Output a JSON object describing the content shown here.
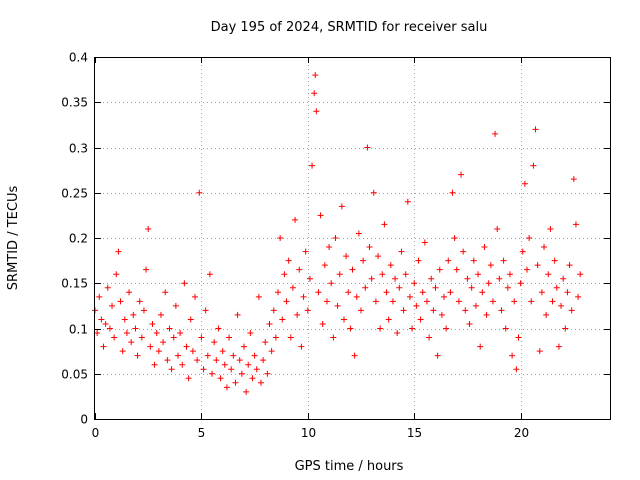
{
  "chart_data": {
    "type": "scatter",
    "title": "Day 195 of 2024, SRMTID for receiver salu",
    "xlabel": "GPS time / hours",
    "ylabel": "SRMTID / TECUs",
    "xlim": [
      0,
      24.2
    ],
    "ylim": [
      0,
      0.4
    ],
    "xticks": [
      0,
      5,
      10,
      15,
      20
    ],
    "xtick_labels": [
      "0",
      "5",
      "10",
      "15",
      "20"
    ],
    "yticks": [
      0,
      0.05,
      0.1,
      0.15,
      0.2,
      0.25,
      0.3,
      0.35,
      0.4
    ],
    "ytick_labels": [
      "0",
      "0.05",
      "0.1",
      "0.15",
      "0.2",
      "0.25",
      "0.3",
      "0.35",
      "0.4"
    ],
    "grid": true,
    "marker": "+",
    "color": "#ff0000",
    "series": [
      {
        "name": "SRMTID",
        "points": [
          [
            0.0,
            0.12
          ],
          [
            0.1,
            0.095
          ],
          [
            0.2,
            0.135
          ],
          [
            0.3,
            0.11
          ],
          [
            0.4,
            0.08
          ],
          [
            0.5,
            0.105
          ],
          [
            0.6,
            0.145
          ],
          [
            0.7,
            0.1
          ],
          [
            0.8,
            0.125
          ],
          [
            0.9,
            0.09
          ],
          [
            1.0,
            0.16
          ],
          [
            1.1,
            0.185
          ],
          [
            1.2,
            0.13
          ],
          [
            1.3,
            0.075
          ],
          [
            1.4,
            0.11
          ],
          [
            1.5,
            0.095
          ],
          [
            1.6,
            0.14
          ],
          [
            1.7,
            0.085
          ],
          [
            1.8,
            0.115
          ],
          [
            1.9,
            0.1
          ],
          [
            2.0,
            0.07
          ],
          [
            2.1,
            0.13
          ],
          [
            2.2,
            0.09
          ],
          [
            2.3,
            0.12
          ],
          [
            2.4,
            0.165
          ],
          [
            2.5,
            0.21
          ],
          [
            2.6,
            0.08
          ],
          [
            2.7,
            0.105
          ],
          [
            2.8,
            0.06
          ],
          [
            2.9,
            0.095
          ],
          [
            3.0,
            0.075
          ],
          [
            3.1,
            0.115
          ],
          [
            3.2,
            0.085
          ],
          [
            3.3,
            0.14
          ],
          [
            3.4,
            0.065
          ],
          [
            3.5,
            0.1
          ],
          [
            3.6,
            0.055
          ],
          [
            3.7,
            0.09
          ],
          [
            3.8,
            0.125
          ],
          [
            3.9,
            0.07
          ],
          [
            4.0,
            0.095
          ],
          [
            4.1,
            0.06
          ],
          [
            4.2,
            0.15
          ],
          [
            4.3,
            0.08
          ],
          [
            4.4,
            0.045
          ],
          [
            4.5,
            0.11
          ],
          [
            4.6,
            0.075
          ],
          [
            4.7,
            0.135
          ],
          [
            4.8,
            0.065
          ],
          [
            4.9,
            0.25
          ],
          [
            5.0,
            0.09
          ],
          [
            5.1,
            0.055
          ],
          [
            5.2,
            0.12
          ],
          [
            5.3,
            0.07
          ],
          [
            5.4,
            0.16
          ],
          [
            5.5,
            0.05
          ],
          [
            5.6,
            0.085
          ],
          [
            5.7,
            0.065
          ],
          [
            5.8,
            0.1
          ],
          [
            5.9,
            0.045
          ],
          [
            6.0,
            0.075
          ],
          [
            6.1,
            0.06
          ],
          [
            6.2,
            0.035
          ],
          [
            6.3,
            0.09
          ],
          [
            6.4,
            0.055
          ],
          [
            6.5,
            0.07
          ],
          [
            6.6,
            0.04
          ],
          [
            6.7,
            0.115
          ],
          [
            6.8,
            0.065
          ],
          [
            6.9,
            0.05
          ],
          [
            7.0,
            0.08
          ],
          [
            7.1,
            0.03
          ],
          [
            7.2,
            0.06
          ],
          [
            7.3,
            0.095
          ],
          [
            7.4,
            0.045
          ],
          [
            7.5,
            0.07
          ],
          [
            7.6,
            0.055
          ],
          [
            7.7,
            0.135
          ],
          [
            7.8,
            0.04
          ],
          [
            7.9,
            0.065
          ],
          [
            8.0,
            0.085
          ],
          [
            8.1,
            0.05
          ],
          [
            8.2,
            0.105
          ],
          [
            8.3,
            0.075
          ],
          [
            8.4,
            0.12
          ],
          [
            8.5,
            0.09
          ],
          [
            8.6,
            0.14
          ],
          [
            8.7,
            0.2
          ],
          [
            8.8,
            0.11
          ],
          [
            8.9,
            0.16
          ],
          [
            9.0,
            0.13
          ],
          [
            9.1,
            0.175
          ],
          [
            9.2,
            0.09
          ],
          [
            9.3,
            0.145
          ],
          [
            9.4,
            0.22
          ],
          [
            9.5,
            0.115
          ],
          [
            9.6,
            0.165
          ],
          [
            9.7,
            0.08
          ],
          [
            9.8,
            0.135
          ],
          [
            9.9,
            0.185
          ],
          [
            10.0,
            0.12
          ],
          [
            10.1,
            0.155
          ],
          [
            10.2,
            0.28
          ],
          [
            10.3,
            0.36
          ],
          [
            10.35,
            0.38
          ],
          [
            10.4,
            0.34
          ],
          [
            10.5,
            0.14
          ],
          [
            10.6,
            0.225
          ],
          [
            10.7,
            0.105
          ],
          [
            10.8,
            0.17
          ],
          [
            10.9,
            0.13
          ],
          [
            11.0,
            0.19
          ],
          [
            11.1,
            0.15
          ],
          [
            11.2,
            0.09
          ],
          [
            11.3,
            0.2
          ],
          [
            11.4,
            0.125
          ],
          [
            11.5,
            0.16
          ],
          [
            11.6,
            0.235
          ],
          [
            11.7,
            0.11
          ],
          [
            11.8,
            0.18
          ],
          [
            11.9,
            0.14
          ],
          [
            12.0,
            0.1
          ],
          [
            12.1,
            0.165
          ],
          [
            12.2,
            0.07
          ],
          [
            12.3,
            0.135
          ],
          [
            12.4,
            0.205
          ],
          [
            12.5,
            0.12
          ],
          [
            12.6,
            0.175
          ],
          [
            12.7,
            0.145
          ],
          [
            12.8,
            0.3
          ],
          [
            12.9,
            0.19
          ],
          [
            13.0,
            0.155
          ],
          [
            13.1,
            0.25
          ],
          [
            13.2,
            0.13
          ],
          [
            13.3,
            0.18
          ],
          [
            13.4,
            0.1
          ],
          [
            13.5,
            0.16
          ],
          [
            13.6,
            0.215
          ],
          [
            13.7,
            0.14
          ],
          [
            13.8,
            0.11
          ],
          [
            13.9,
            0.17
          ],
          [
            14.0,
            0.13
          ],
          [
            14.1,
            0.155
          ],
          [
            14.2,
            0.095
          ],
          [
            14.3,
            0.145
          ],
          [
            14.4,
            0.185
          ],
          [
            14.5,
            0.12
          ],
          [
            14.6,
            0.16
          ],
          [
            14.7,
            0.24
          ],
          [
            14.8,
            0.135
          ],
          [
            14.9,
            0.1
          ],
          [
            15.0,
            0.15
          ],
          [
            15.1,
            0.125
          ],
          [
            15.2,
            0.175
          ],
          [
            15.3,
            0.11
          ],
          [
            15.4,
            0.14
          ],
          [
            15.5,
            0.195
          ],
          [
            15.6,
            0.13
          ],
          [
            15.7,
            0.09
          ],
          [
            15.8,
            0.155
          ],
          [
            15.9,
            0.12
          ],
          [
            16.0,
            0.145
          ],
          [
            16.1,
            0.07
          ],
          [
            16.2,
            0.165
          ],
          [
            16.3,
            0.115
          ],
          [
            16.4,
            0.135
          ],
          [
            16.5,
            0.1
          ],
          [
            16.6,
            0.175
          ],
          [
            16.7,
            0.14
          ],
          [
            16.8,
            0.25
          ],
          [
            16.9,
            0.2
          ],
          [
            17.0,
            0.165
          ],
          [
            17.1,
            0.13
          ],
          [
            17.2,
            0.27
          ],
          [
            17.3,
            0.185
          ],
          [
            17.4,
            0.12
          ],
          [
            17.5,
            0.155
          ],
          [
            17.6,
            0.105
          ],
          [
            17.7,
            0.145
          ],
          [
            17.8,
            0.175
          ],
          [
            17.9,
            0.125
          ],
          [
            18.0,
            0.16
          ],
          [
            18.1,
            0.08
          ],
          [
            18.2,
            0.14
          ],
          [
            18.3,
            0.19
          ],
          [
            18.4,
            0.115
          ],
          [
            18.5,
            0.15
          ],
          [
            18.6,
            0.17
          ],
          [
            18.7,
            0.13
          ],
          [
            18.8,
            0.315
          ],
          [
            18.9,
            0.21
          ],
          [
            19.0,
            0.155
          ],
          [
            19.1,
            0.12
          ],
          [
            19.2,
            0.175
          ],
          [
            19.3,
            0.1
          ],
          [
            19.4,
            0.145
          ],
          [
            19.5,
            0.16
          ],
          [
            19.6,
            0.07
          ],
          [
            19.7,
            0.13
          ],
          [
            19.8,
            0.055
          ],
          [
            19.9,
            0.09
          ],
          [
            20.0,
            0.15
          ],
          [
            20.1,
            0.185
          ],
          [
            20.2,
            0.26
          ],
          [
            20.3,
            0.165
          ],
          [
            20.4,
            0.2
          ],
          [
            20.5,
            0.13
          ],
          [
            20.6,
            0.28
          ],
          [
            20.7,
            0.32
          ],
          [
            20.8,
            0.17
          ],
          [
            20.9,
            0.075
          ],
          [
            21.0,
            0.14
          ],
          [
            21.1,
            0.19
          ],
          [
            21.2,
            0.115
          ],
          [
            21.3,
            0.16
          ],
          [
            21.4,
            0.21
          ],
          [
            21.5,
            0.13
          ],
          [
            21.6,
            0.175
          ],
          [
            21.7,
            0.145
          ],
          [
            21.8,
            0.08
          ],
          [
            21.9,
            0.125
          ],
          [
            22.0,
            0.155
          ],
          [
            22.1,
            0.1
          ],
          [
            22.2,
            0.14
          ],
          [
            22.3,
            0.17
          ],
          [
            22.4,
            0.12
          ],
          [
            22.5,
            0.265
          ],
          [
            22.6,
            0.215
          ],
          [
            22.7,
            0.135
          ],
          [
            22.8,
            0.16
          ]
        ]
      }
    ]
  }
}
